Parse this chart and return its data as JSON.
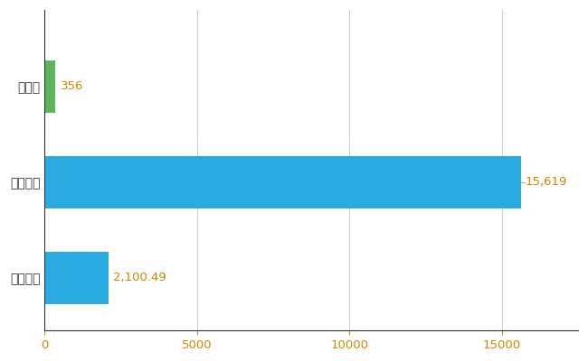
{
  "categories": [
    "全国平均",
    "全国最大",
    "鳥取県"
  ],
  "values": [
    2100.49,
    15619,
    356
  ],
  "bar_colors": [
    "#29ABE2",
    "#29ABE2",
    "#5CB85C"
  ],
  "labels": [
    "2,100.49",
    "15,619",
    "356"
  ],
  "xlabel_ticks": [
    0,
    5000,
    10000,
    15000
  ],
  "xlim": [
    0,
    17500
  ],
  "grid_color": "#CCCCCC",
  "background_color": "#FFFFFF",
  "bar_height": 0.55,
  "label_fontsize": 9.5,
  "tick_fontsize": 9.5,
  "ytick_fontsize": 10,
  "label_color": "#CC8800",
  "xtick_color": "#CC8800"
}
